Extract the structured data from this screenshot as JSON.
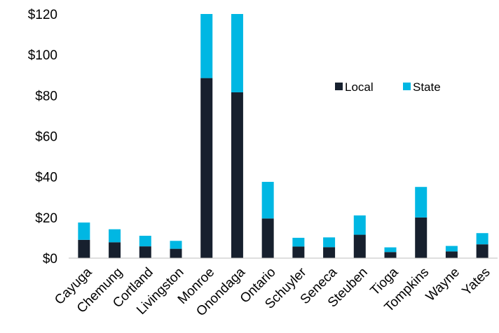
{
  "chart_data": {
    "type": "bar",
    "stacked": true,
    "title": "",
    "xlabel": "",
    "ylabel": "",
    "ylim": [
      0,
      120
    ],
    "y_ticks": [
      "$0",
      "$20",
      "$40",
      "$60",
      "$80",
      "$100",
      "$120"
    ],
    "y_tick_values": [
      0,
      20,
      40,
      60,
      80,
      100,
      120
    ],
    "grid": false,
    "legend_position": "top-right",
    "categories": [
      "Cayuga",
      "Chemung",
      "Cortland",
      "Livingston",
      "Monroe",
      "Onondaga",
      "Ontario",
      "Schuyler",
      "Seneca",
      "Steuben",
      "Tioga",
      "Tompkins",
      "Wayne",
      "Yates"
    ],
    "series": [
      {
        "name": "Local",
        "color": "#17202e",
        "values": [
          9,
          7.8,
          5.8,
          4.6,
          88.5,
          81.5,
          19.5,
          5.7,
          5.4,
          11.5,
          3,
          20,
          3.3,
          6.8
        ]
      },
      {
        "name": "State",
        "color": "#00b7e3",
        "values": [
          8.5,
          6.4,
          5.2,
          3.9,
          31.5,
          38.5,
          18,
          4.3,
          4.8,
          9.5,
          2.3,
          15,
          2.7,
          5.5
        ]
      }
    ]
  }
}
